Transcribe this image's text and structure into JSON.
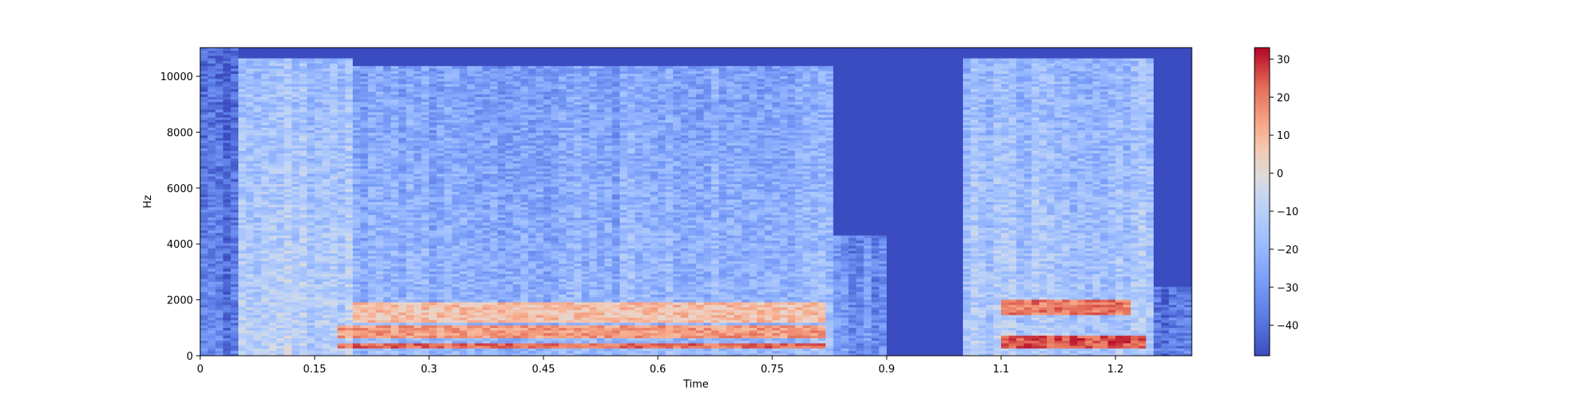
{
  "chart_data": {
    "type": "heatmap",
    "subtype": "spectrogram",
    "title": "",
    "xlabel": "Time",
    "ylabel": "Hz",
    "xlim": [
      0,
      1.3
    ],
    "ylim": [
      0,
      11025
    ],
    "x_ticks": [
      {
        "value": 0,
        "label": "0"
      },
      {
        "value": 0.15,
        "label": "0.15"
      },
      {
        "value": 0.3,
        "label": "0.3"
      },
      {
        "value": 0.45,
        "label": "0.45"
      },
      {
        "value": 0.6,
        "label": "0.6"
      },
      {
        "value": 0.75,
        "label": "0.75"
      },
      {
        "value": 0.9,
        "label": "0.9"
      },
      {
        "value": 1.05,
        "label": "1.1"
      },
      {
        "value": 1.2,
        "label": "1.2"
      }
    ],
    "y_ticks": [
      {
        "value": 0,
        "label": "0"
      },
      {
        "value": 2000,
        "label": "2000"
      },
      {
        "value": 4000,
        "label": "4000"
      },
      {
        "value": 6000,
        "label": "6000"
      },
      {
        "value": 8000,
        "label": "8000"
      },
      {
        "value": 10000,
        "label": "10000"
      }
    ],
    "colorbar": {
      "colormap": "coolwarm",
      "range": [
        -48,
        33
      ],
      "ticks": [
        {
          "value": 30,
          "label": "30"
        },
        {
          "value": 20,
          "label": "20"
        },
        {
          "value": 10,
          "label": "10"
        },
        {
          "value": 0,
          "label": "0"
        },
        {
          "value": -10,
          "label": "−10"
        },
        {
          "value": -20,
          "label": "−20"
        },
        {
          "value": -30,
          "label": "−30"
        },
        {
          "value": -40,
          "label": "−40"
        }
      ]
    },
    "activity_segments": [
      {
        "t_start": 0.0,
        "t_end": 0.05,
        "max_freq": 11025,
        "level_db": -35
      },
      {
        "t_start": 0.05,
        "t_end": 0.2,
        "max_freq": 10700,
        "level_db": -10
      },
      {
        "t_start": 0.2,
        "t_end": 0.55,
        "max_freq": 10400,
        "level_db": -20
      },
      {
        "t_start": 0.55,
        "t_end": 0.83,
        "max_freq": 10400,
        "level_db": -18
      },
      {
        "t_start": 0.83,
        "t_end": 0.9,
        "max_freq": 4300,
        "level_db": -30
      },
      {
        "t_start": 0.9,
        "t_end": 1.0,
        "max_freq": 0,
        "level_db": -48
      },
      {
        "t_start": 1.0,
        "t_end": 1.25,
        "max_freq": 10700,
        "level_db": -12
      },
      {
        "t_start": 1.25,
        "t_end": 1.3,
        "max_freq": 2500,
        "level_db": -38
      }
    ],
    "harmonic_bands": [
      {
        "t_start": 0.18,
        "t_end": 0.82,
        "freq_start": 300,
        "freq_end": 450,
        "level_db": 22
      },
      {
        "t_start": 0.18,
        "t_end": 0.82,
        "freq_start": 600,
        "freq_end": 1100,
        "level_db": 15
      },
      {
        "t_start": 0.2,
        "t_end": 0.82,
        "freq_start": 1200,
        "freq_end": 1900,
        "level_db": 8
      },
      {
        "t_start": 1.05,
        "t_end": 1.24,
        "freq_start": 300,
        "freq_end": 700,
        "level_db": 25
      },
      {
        "t_start": 1.05,
        "t_end": 1.22,
        "freq_start": 1500,
        "freq_end": 2000,
        "level_db": 20
      }
    ]
  }
}
